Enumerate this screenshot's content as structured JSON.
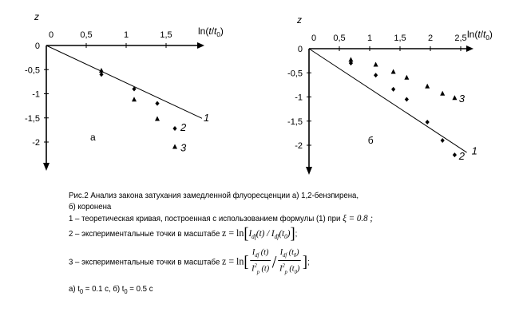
{
  "chart_data": [
    {
      "type": "scatter",
      "panel_label": "а",
      "xlabel_pre": "ln(",
      "xlabel_t": "t",
      "xlabel_sep": "/",
      "xlabel_t0": "t",
      "xlabel_sub": "0",
      "xlabel_post": ")",
      "ylabel": "z",
      "x_ticks": [
        "0",
        "0,5",
        "1",
        "1,5"
      ],
      "x_tick_values": [
        0,
        0.5,
        1,
        1.5
      ],
      "y_ticks": [
        "0",
        "-0,5",
        "-1",
        "-1,5",
        "-2"
      ],
      "y_tick_values": [
        0,
        -0.5,
        -1,
        -1.5,
        -2
      ],
      "xlim": [
        0,
        1.95
      ],
      "ylim": [
        -2.35,
        0
      ],
      "series": [
        {
          "name": "1",
          "kind": "line",
          "x": [
            0,
            1.95
          ],
          "y": [
            0,
            -1.51
          ]
        },
        {
          "name": "2",
          "kind": "diamond",
          "x": [
            0.69,
            1.1,
            1.39,
            1.61
          ],
          "y": [
            -0.6,
            -0.9,
            -1.2,
            -1.72
          ]
        },
        {
          "name": "3",
          "kind": "triangle",
          "x": [
            0.69,
            1.1,
            1.39,
            1.61
          ],
          "y": [
            -0.52,
            -1.12,
            -1.52,
            -2.1
          ]
        }
      ],
      "curve_labels": [
        {
          "text": "1",
          "x": 1.97,
          "y": -1.5
        },
        {
          "text": "2",
          "x": 1.68,
          "y": -1.7
        },
        {
          "text": "3",
          "x": 1.68,
          "y": -2.12
        }
      ],
      "panel_label_pos": {
        "x": 0.55,
        "y": -1.97
      }
    },
    {
      "type": "scatter",
      "panel_label": "б",
      "xlabel_pre": "ln(",
      "xlabel_t": "t",
      "xlabel_sep": "/",
      "xlabel_t0": "t",
      "xlabel_sub": "0",
      "xlabel_post": ")",
      "ylabel": "z",
      "x_ticks": [
        "0",
        "0,5",
        "1",
        "1,5",
        "2",
        "2,5"
      ],
      "x_tick_values": [
        0,
        0.5,
        1,
        1.5,
        2,
        2.5
      ],
      "y_ticks": [
        "0",
        "-0,5",
        "-1",
        "-1,5",
        "-2"
      ],
      "y_tick_values": [
        0,
        -0.5,
        -1,
        -1.5,
        -2
      ],
      "xlim": [
        0,
        2.85
      ],
      "ylim": [
        -2.45,
        0
      ],
      "series": [
        {
          "name": "1",
          "kind": "line",
          "x": [
            0,
            2.6
          ],
          "y": [
            0,
            -2.15
          ]
        },
        {
          "name": "2",
          "kind": "diamond",
          "x": [
            0.69,
            1.1,
            1.39,
            1.61,
            1.95,
            2.2,
            2.4
          ],
          "y": [
            -0.3,
            -0.55,
            -0.84,
            -1.05,
            -1.52,
            -1.9,
            -2.2
          ]
        },
        {
          "name": "3",
          "kind": "triangle",
          "x": [
            0.69,
            1.1,
            1.39,
            1.61,
            1.95,
            2.2,
            2.4
          ],
          "y": [
            -0.23,
            -0.33,
            -0.48,
            -0.6,
            -0.78,
            -0.93,
            -1.02
          ]
        }
      ],
      "curve_labels": [
        {
          "text": "1",
          "x": 2.68,
          "y": -2.12
        },
        {
          "text": "2",
          "x": 2.47,
          "y": -2.23
        },
        {
          "text": "3",
          "x": 2.47,
          "y": -1.04
        }
      ],
      "panel_label_pos": {
        "x": 0.97,
        "y": -1.97
      }
    }
  ],
  "caption": {
    "line1": "Рис.2 Анализ закона затухания замедленной флуоресценции а) 1,2-бензпирена,",
    "line2": "б) коронена",
    "line3_text": "1 – теоретическая кривая, построенная с использованием формулы (1) при",
    "line3_xi": "ξ = 0.8 ;",
    "line4_text": "2 – экспериментальные точки в масштабе",
    "line4_formula_lhs": "z = ln",
    "line4_formula_num": "I",
    "line4_formula_sub": "df",
    "line4_formula_t": "(t) / ",
    "line4_formula_t0": "(t",
    "line4_formula_t0_sub": "0",
    "line4_formula_end": ")",
    "line4_tail": ";",
    "line5_text": "3 – экспериментальные точки в масштабе",
    "line5_formula_lhs": "z = ln",
    "line5_num1": "I",
    "line5_num1_sub": "df",
    "line5_num1_arg": " (t)",
    "line5_den1": "I",
    "line5_den1_sub": "p",
    "line5_den1_sup": "2",
    "line5_den1_arg": " (t)",
    "line5_num2": "I",
    "line5_num2_sub": "df",
    "line5_num2_arg": " (t",
    "line5_num2_arg_sub": "0",
    "line5_num2_arg_end": ")",
    "line5_den2": "I",
    "line5_den2_sub": "p",
    "line5_den2_sup": "2",
    "line5_den2_arg": " (t",
    "line5_den2_arg_sub": "0",
    "line5_den2_arg_end": ")",
    "line5_tail": ";",
    "line6": "а) t",
    "line6_sub": "0",
    "line6_mid": " = 0.1 c, б) t",
    "line6_sub2": "0",
    "line6_end": " = 0.5 c"
  }
}
